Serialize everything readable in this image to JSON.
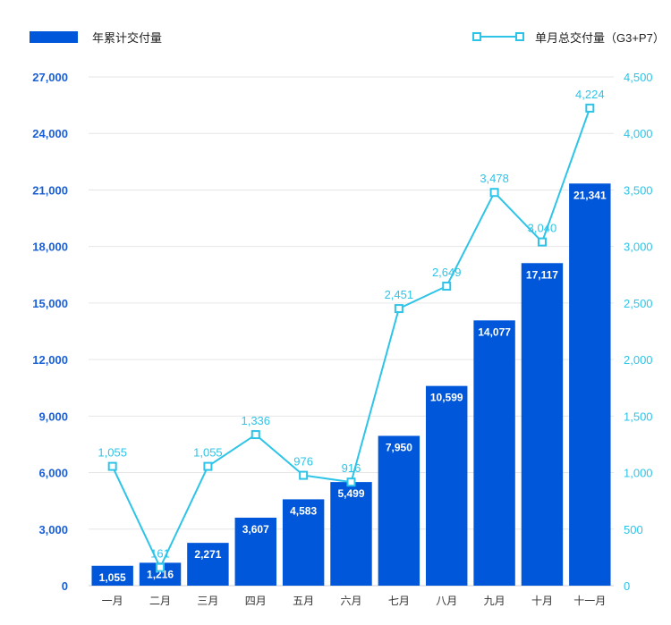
{
  "chart_data": {
    "type": "bar",
    "categories": [
      "一月",
      "二月",
      "三月",
      "四月",
      "五月",
      "六月",
      "七月",
      "八月",
      "九月",
      "十月",
      "十一月"
    ],
    "series": [
      {
        "name": "年累计交付量",
        "type": "bar",
        "axis": "left",
        "color": "#0057d9",
        "values": [
          1055,
          1216,
          2271,
          3607,
          4583,
          5499,
          7950,
          10599,
          14077,
          17117,
          21341
        ]
      },
      {
        "name": "单月总交付量（G3+P7）",
        "type": "line",
        "axis": "right",
        "color": "#2ec4e8",
        "values": [
          1055,
          161,
          1055,
          1336,
          976,
          916,
          2451,
          2649,
          3478,
          3040,
          4224
        ]
      }
    ],
    "left_axis": {
      "ylim": [
        0,
        27000
      ],
      "ticks": [
        "0",
        "3,000",
        "6,000",
        "9,000",
        "12,000",
        "15,000",
        "18,000",
        "21,000",
        "24,000",
        "27,000"
      ]
    },
    "right_axis": {
      "ylim": [
        0,
        4500
      ],
      "ticks": [
        "0",
        "500",
        "1,000",
        "1,500",
        "2,000",
        "2,500",
        "3,000",
        "3,500",
        "4,000",
        "4,500"
      ]
    },
    "grid": true,
    "legend_position": "top",
    "title": "",
    "xlabel": "",
    "ylabel": ""
  },
  "legend": {
    "bar_label": "年累计交付量",
    "line_label": "单月总交付量（G3+P7）"
  },
  "bar_value_labels": [
    "1,055",
    "1,216",
    "2,271",
    "3,607",
    "4,583",
    "5,499",
    "7,950",
    "10,599",
    "14,077",
    "17,117",
    "21,341"
  ],
  "line_value_labels": [
    "1,055",
    "161",
    "1,055",
    "1,336",
    "976",
    "916",
    "2,451",
    "2,649",
    "3,478",
    "3,040",
    "4,224"
  ]
}
